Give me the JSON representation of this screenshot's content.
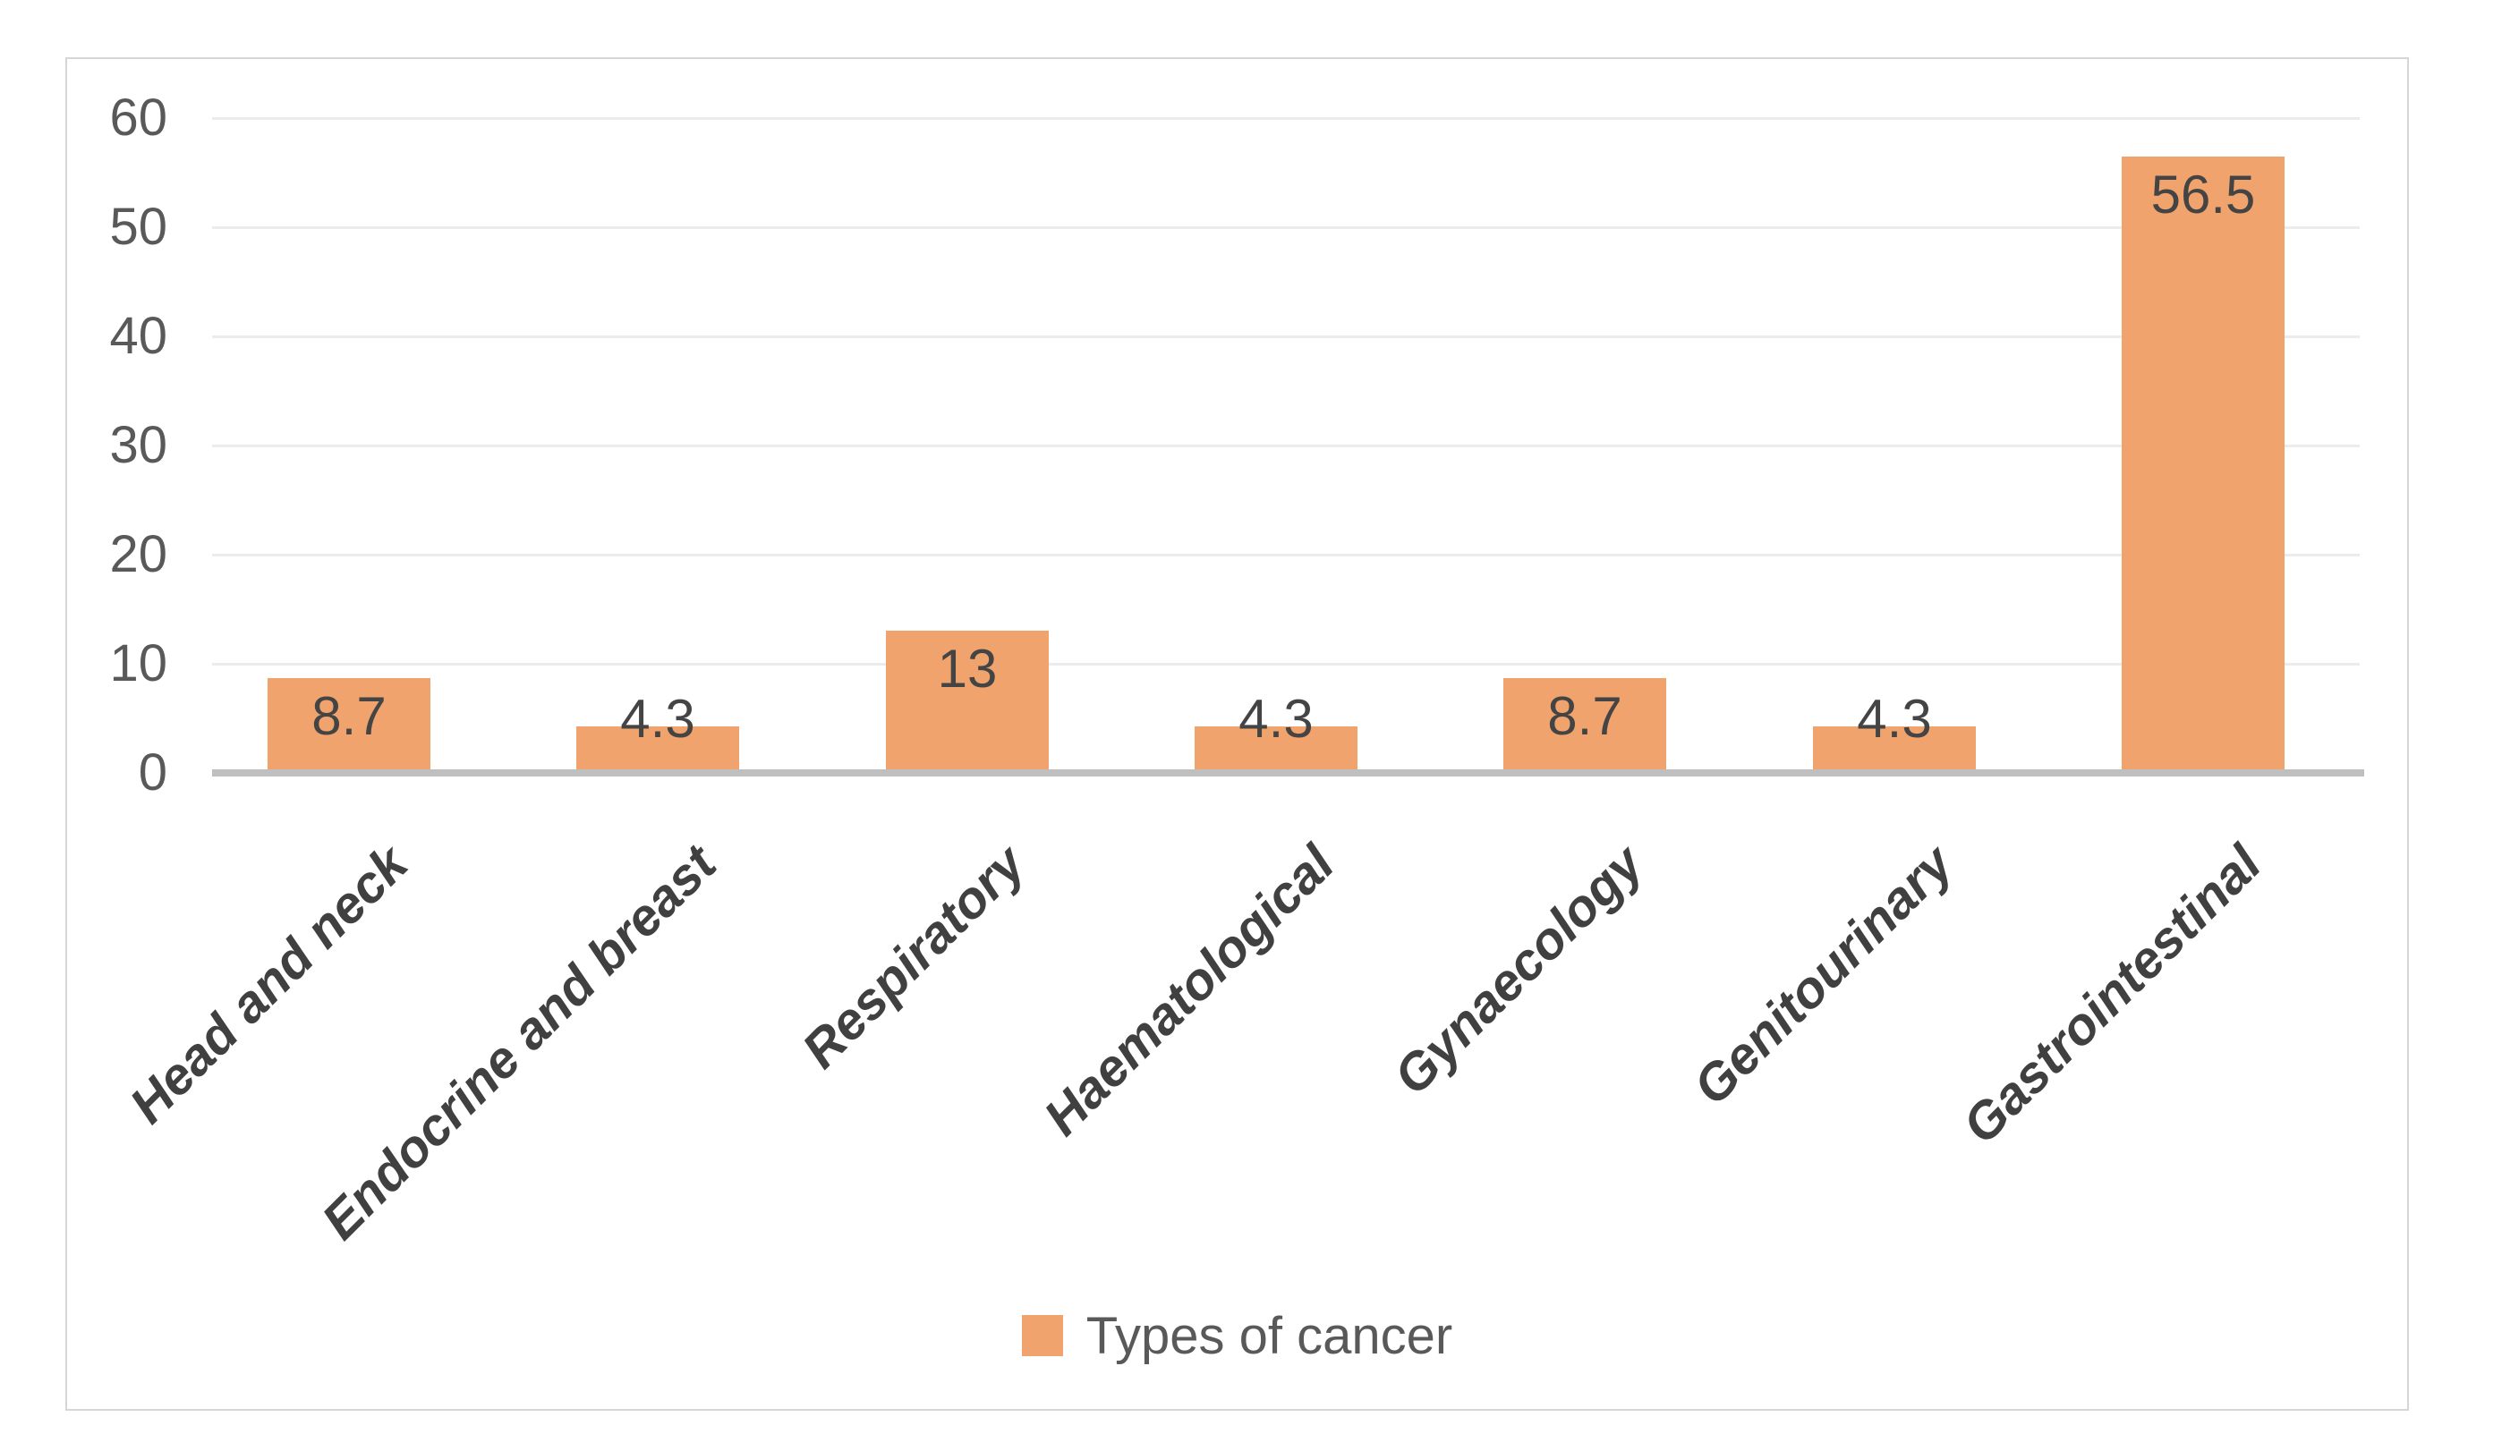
{
  "chart_data": {
    "type": "bar",
    "title": "",
    "xlabel": "",
    "ylabel": "",
    "categories": [
      "Head and neck",
      "Endocrine and breast",
      "Respiratory",
      "Haematological",
      "Gynaecology",
      "Genitourinary",
      "Gastrointestinal"
    ],
    "values": [
      8.7,
      4.3,
      13,
      4.3,
      8.7,
      4.3,
      56.5
    ],
    "data_labels": [
      "8.7",
      "4.3",
      "13",
      "4.3",
      "8.7",
      "4.3",
      "56.5"
    ],
    "series_name": "Types of cancer",
    "ylim": [
      0,
      60
    ],
    "yticks": [
      0,
      10,
      20,
      30,
      40,
      50,
      60
    ],
    "grid": "horizontal",
    "legend_position": "bottom-center",
    "category_label_rotation_deg": -45,
    "bar_color": "#f0a36c",
    "gridline_color": "#ececec",
    "axis_line_color": "#bfbfbf",
    "tick_text_color": "#595959",
    "data_label_color": "#444444",
    "category_label_color": "#404040"
  }
}
